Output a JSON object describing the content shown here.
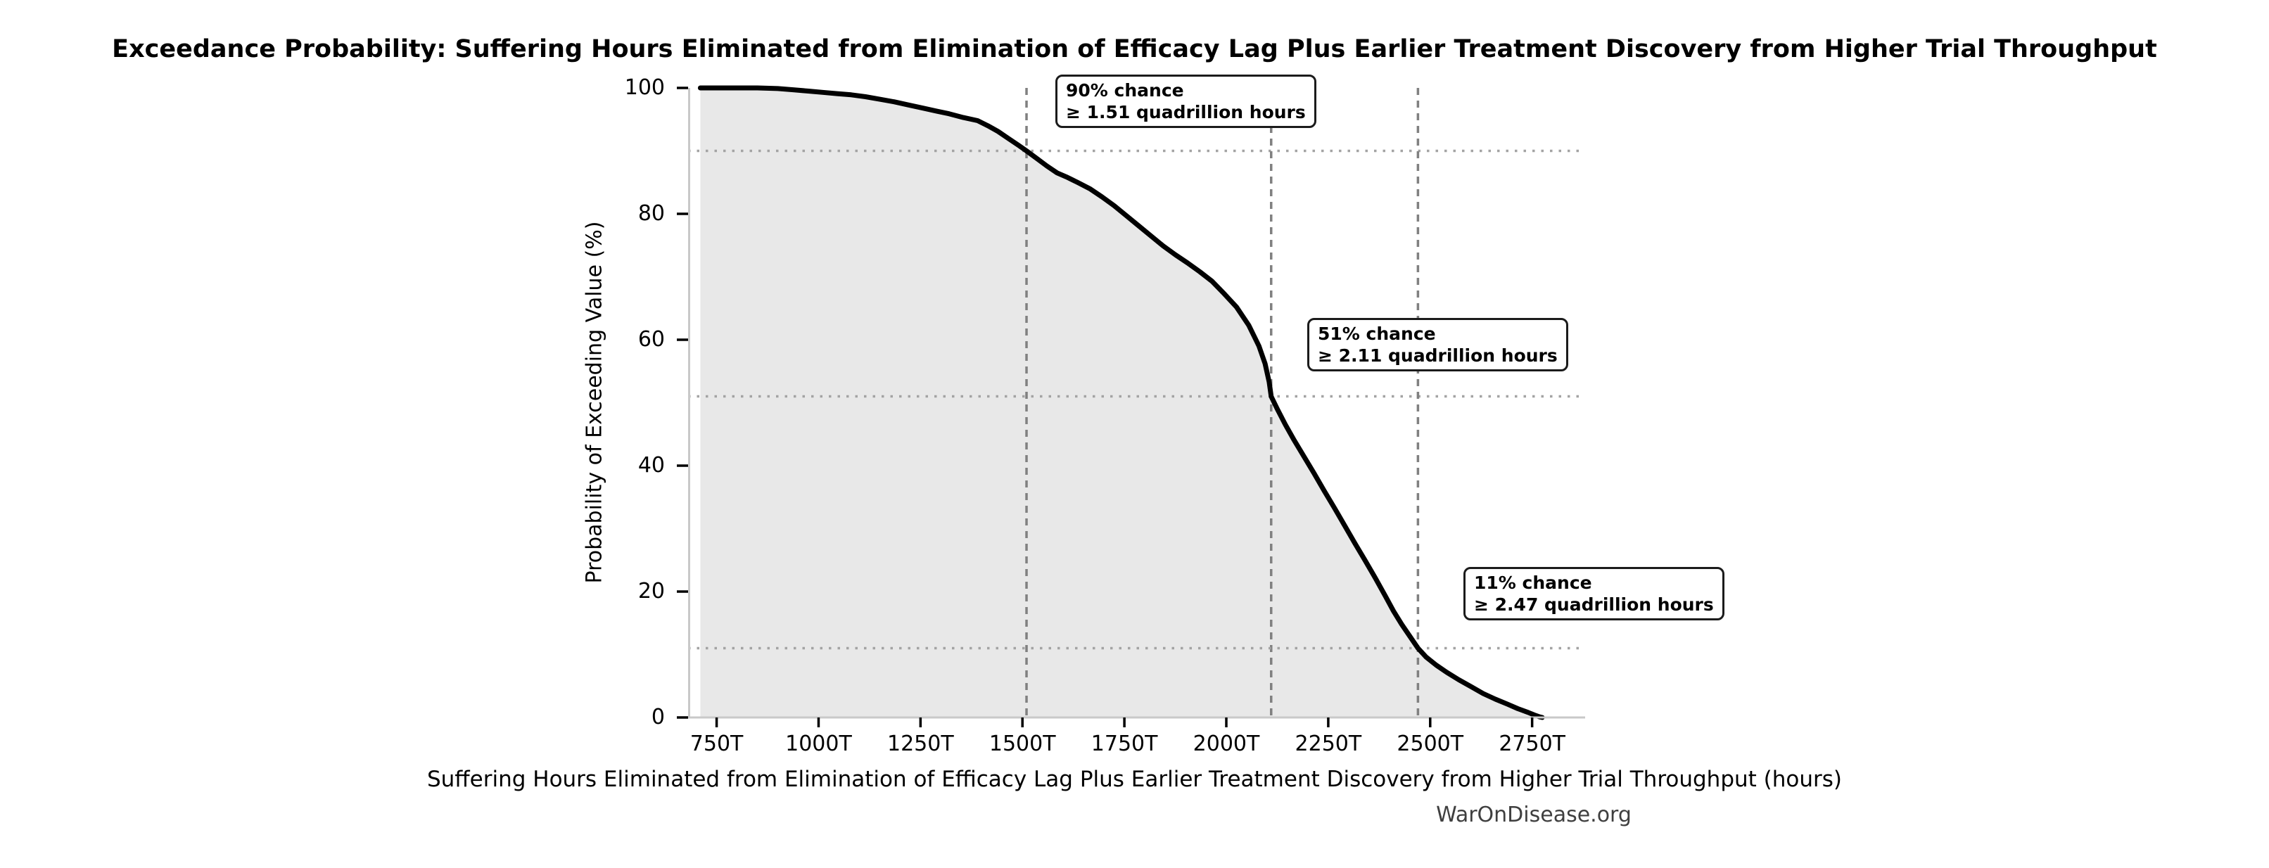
{
  "title": "Exceedance Probability: Suffering Hours Eliminated from Elimination of Efficacy Lag Plus Earlier Treatment Discovery from Higher Trial Throughput",
  "watermark": "WarOnDisease.org",
  "chart_data": {
    "type": "area",
    "title": "Exceedance Probability: Suffering Hours Eliminated from Elimination of Efficacy Lag Plus Earlier Treatment Discovery from Higher Trial Throughput",
    "xlabel": "Suffering Hours Eliminated from Elimination of Efficacy Lag Plus Earlier Treatment Discovery from Higher Trial Throughput (hours)",
    "ylabel": "Probability of Exceeding Value (%)",
    "x_unit": "trillions of hours (T)",
    "x_range": [
      680,
      2880
    ],
    "ylim": [
      0,
      100
    ],
    "grid": "dotted horizontal lines only at annotated probability levels",
    "legend": "none",
    "line_color": "#000000",
    "fill_color": "#e8e8e8",
    "spine_color": "#c9c9c9",
    "dashed_line_color": "#808080",
    "dotted_line_color": "#a3a3a3",
    "x_ticks": [
      {
        "value": 750,
        "label": "750T"
      },
      {
        "value": 1000,
        "label": "1000T"
      },
      {
        "value": 1250,
        "label": "1250T"
      },
      {
        "value": 1500,
        "label": "1500T"
      },
      {
        "value": 1750,
        "label": "1750T"
      },
      {
        "value": 2000,
        "label": "2000T"
      },
      {
        "value": 2250,
        "label": "2250T"
      },
      {
        "value": 2500,
        "label": "2500T"
      },
      {
        "value": 2750,
        "label": "2750T"
      }
    ],
    "y_ticks": [
      {
        "value": 0,
        "label": "0"
      },
      {
        "value": 20,
        "label": "20"
      },
      {
        "value": 40,
        "label": "40"
      },
      {
        "value": 60,
        "label": "60"
      },
      {
        "value": 80,
        "label": "80"
      },
      {
        "value": 100,
        "label": "100"
      }
    ],
    "annotations": [
      {
        "chance": "90% chance",
        "threshold": "≥ 1.51 quadrillion hours",
        "x": 1510,
        "prob": 90
      },
      {
        "chance": "51% chance",
        "threshold": "≥ 2.11 quadrillion hours",
        "x": 2110,
        "prob": 51
      },
      {
        "chance": "11% chance",
        "threshold": "≥ 2.47 quadrillion hours",
        "x": 2470,
        "prob": 11
      }
    ],
    "curve": [
      [
        710,
        100
      ],
      [
        780,
        100
      ],
      [
        850,
        100
      ],
      [
        900,
        99.9
      ],
      [
        940,
        99.7
      ],
      [
        975,
        99.5
      ],
      [
        1010,
        99.3
      ],
      [
        1045,
        99.1
      ],
      [
        1080,
        98.9
      ],
      [
        1115,
        98.6
      ],
      [
        1150,
        98.2
      ],
      [
        1185,
        97.8
      ],
      [
        1220,
        97.3
      ],
      [
        1255,
        96.8
      ],
      [
        1290,
        96.3
      ],
      [
        1320,
        95.9
      ],
      [
        1355,
        95.3
      ],
      [
        1390,
        94.8
      ],
      [
        1415,
        94.0
      ],
      [
        1440,
        93.1
      ],
      [
        1465,
        92.0
      ],
      [
        1490,
        90.9
      ],
      [
        1510,
        90.0
      ],
      [
        1535,
        88.8
      ],
      [
        1560,
        87.6
      ],
      [
        1585,
        86.5
      ],
      [
        1610,
        85.8
      ],
      [
        1635,
        85.0
      ],
      [
        1665,
        84.0
      ],
      [
        1695,
        82.7
      ],
      [
        1725,
        81.3
      ],
      [
        1755,
        79.7
      ],
      [
        1785,
        78.1
      ],
      [
        1815,
        76.5
      ],
      [
        1845,
        74.9
      ],
      [
        1875,
        73.5
      ],
      [
        1905,
        72.2
      ],
      [
        1935,
        70.8
      ],
      [
        1965,
        69.3
      ],
      [
        1995,
        67.3
      ],
      [
        2025,
        65.2
      ],
      [
        2055,
        62.3
      ],
      [
        2080,
        59.0
      ],
      [
        2095,
        56.2
      ],
      [
        2105,
        53.3
      ],
      [
        2110,
        51.0
      ],
      [
        2125,
        49.0
      ],
      [
        2145,
        46.5
      ],
      [
        2165,
        44.2
      ],
      [
        2190,
        41.5
      ],
      [
        2215,
        38.8
      ],
      [
        2240,
        36.0
      ],
      [
        2265,
        33.3
      ],
      [
        2290,
        30.5
      ],
      [
        2315,
        27.7
      ],
      [
        2340,
        25.0
      ],
      [
        2365,
        22.2
      ],
      [
        2390,
        19.3
      ],
      [
        2410,
        16.9
      ],
      [
        2430,
        14.8
      ],
      [
        2450,
        12.9
      ],
      [
        2470,
        11.0
      ],
      [
        2490,
        9.6
      ],
      [
        2515,
        8.3
      ],
      [
        2540,
        7.2
      ],
      [
        2570,
        6.0
      ],
      [
        2600,
        4.9
      ],
      [
        2630,
        3.8
      ],
      [
        2660,
        2.9
      ],
      [
        2690,
        2.1
      ],
      [
        2715,
        1.4
      ],
      [
        2740,
        0.8
      ],
      [
        2755,
        0.4
      ],
      [
        2768,
        0.1
      ],
      [
        2775,
        0
      ]
    ]
  }
}
